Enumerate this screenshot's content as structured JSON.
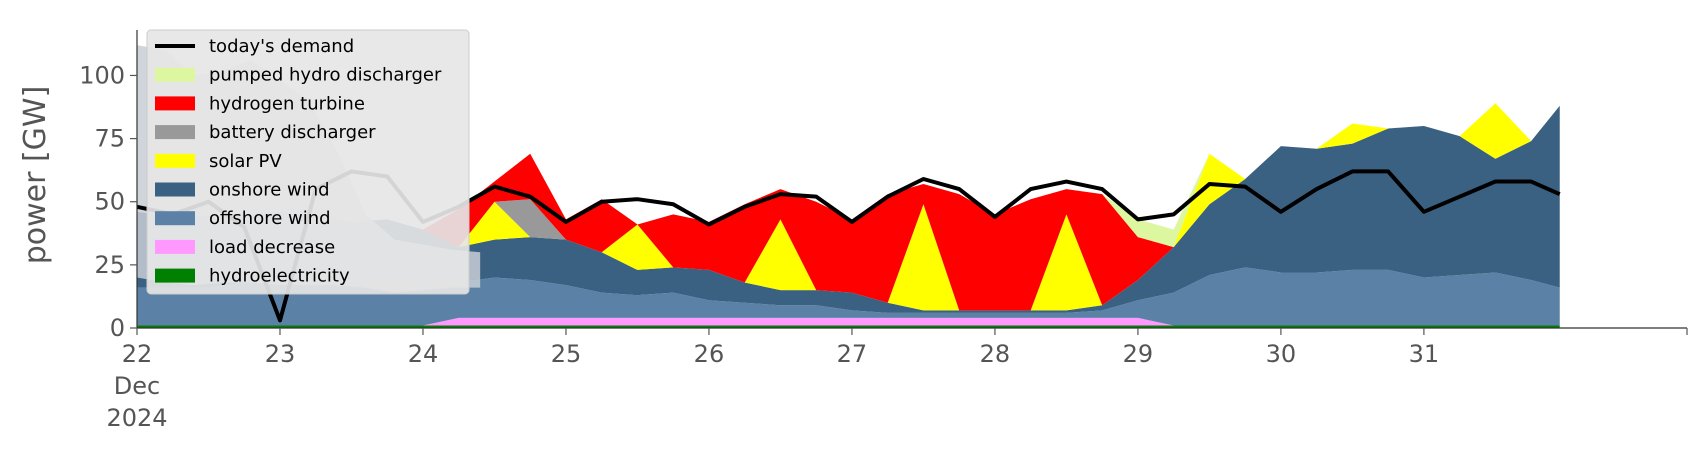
{
  "chart_data": {
    "type": "area",
    "stacked": true,
    "ylabel": "power [GW]",
    "ylim": [
      0,
      118
    ],
    "yticks": [
      0,
      25,
      50,
      75,
      100
    ],
    "x_start_day": "2024-12-22",
    "x_end_day": "2025-01-01",
    "xticks": [
      {
        "day": 0,
        "label": "22",
        "sub1": "Dec",
        "sub2": "2024"
      },
      {
        "day": 1,
        "label": "23"
      },
      {
        "day": 2,
        "label": "24"
      },
      {
        "day": 3,
        "label": "25"
      },
      {
        "day": 4,
        "label": "26"
      },
      {
        "day": 5,
        "label": "27"
      },
      {
        "day": 6,
        "label": "28"
      },
      {
        "day": 7,
        "label": "29"
      },
      {
        "day": 8,
        "label": "30"
      },
      {
        "day": 9,
        "label": "31"
      }
    ],
    "legend_position": "top-left",
    "grid": false,
    "x_days": [
      0,
      0.25,
      0.5,
      0.75,
      1,
      1.25,
      1.5,
      1.75,
      2,
      2.25,
      2.5,
      2.75,
      3,
      3.25,
      3.5,
      3.75,
      4,
      4.25,
      4.5,
      4.75,
      5,
      5.25,
      5.5,
      5.75,
      6,
      6.25,
      6.5,
      6.75,
      7,
      7.25,
      7.5,
      7.75,
      8,
      8.25,
      8.5,
      8.75,
      9,
      9.25,
      9.5,
      9.75,
      9.95
    ],
    "demand": {
      "name": "today's demand",
      "color": "#000000",
      "values": [
        48,
        45,
        50,
        40,
        3,
        55,
        62,
        60,
        42,
        48,
        56,
        52,
        42,
        50,
        51,
        49,
        41,
        48,
        53,
        52,
        42,
        52,
        59,
        55,
        44,
        55,
        58,
        55,
        43,
        45,
        57,
        56,
        46,
        55,
        62,
        62,
        46,
        52,
        58,
        58,
        53
      ]
    },
    "series": [
      {
        "name": "hydroelectricity",
        "color": "#008000",
        "values": [
          1,
          1,
          1,
          1,
          1,
          1,
          1,
          1,
          1,
          1,
          1,
          1,
          1,
          1,
          1,
          1,
          1,
          1,
          1,
          1,
          1,
          1,
          1,
          1,
          1,
          1,
          1,
          1,
          1,
          1,
          1,
          1,
          1,
          1,
          1,
          1,
          1,
          1,
          1,
          1,
          1
        ]
      },
      {
        "name": "load decrease",
        "color": "#ff99ff",
        "values": [
          0,
          0,
          0,
          0,
          0,
          0,
          0,
          0,
          0,
          3,
          3,
          3,
          3,
          3,
          3,
          3,
          3,
          3,
          3,
          3,
          3,
          3,
          3,
          3,
          3,
          3,
          3,
          3,
          3,
          0,
          0,
          0,
          0,
          0,
          0,
          0,
          0,
          0,
          0,
          0,
          0
        ]
      },
      {
        "name": "offshore wind",
        "color": "#5b82a6",
        "values": [
          15,
          15,
          15,
          17,
          18,
          17,
          16,
          17,
          16,
          14,
          16,
          15,
          13,
          10,
          9,
          10,
          7,
          6,
          5,
          5,
          3,
          2,
          2,
          2,
          2,
          2,
          2,
          3,
          7,
          13,
          20,
          23,
          21,
          21,
          22,
          22,
          19,
          20,
          21,
          18,
          15
        ]
      },
      {
        "name": "onshore wind",
        "color": "#3b6182",
        "values": [
          30,
          28,
          28,
          27,
          27,
          26,
          25,
          25,
          22,
          14,
          15,
          17,
          18,
          16,
          10,
          10,
          12,
          8,
          6,
          6,
          7,
          4,
          1,
          1,
          1,
          1,
          1,
          2,
          8,
          18,
          28,
          35,
          50,
          49,
          50,
          56,
          60,
          55,
          45,
          55,
          72
        ]
      },
      {
        "name": "solar PV",
        "color": "#ffff00",
        "values": [
          0,
          0,
          0,
          0,
          0,
          0,
          0,
          0,
          0,
          0,
          15,
          0,
          0,
          0,
          18,
          0,
          0,
          0,
          28,
          0,
          0,
          0,
          42,
          0,
          0,
          0,
          38,
          0,
          0,
          0,
          20,
          0,
          0,
          0,
          8,
          0,
          0,
          0,
          22,
          0,
          0
        ]
      },
      {
        "name": "battery discharger",
        "color": "#999999",
        "values": [
          0,
          0,
          0,
          0,
          0,
          0,
          0,
          0,
          0,
          0,
          0,
          15,
          0,
          0,
          0,
          0,
          0,
          0,
          0,
          0,
          0,
          0,
          0,
          0,
          0,
          0,
          0,
          0,
          0,
          0,
          0,
          0,
          0,
          0,
          0,
          0,
          0,
          0,
          0,
          0,
          0
        ]
      },
      {
        "name": "hydrogen turbine",
        "color": "#ff0000",
        "values": [
          0,
          0,
          0,
          0,
          0,
          0,
          0,
          0,
          0,
          15,
          8,
          18,
          8,
          21,
          0,
          21,
          19,
          31,
          12,
          35,
          29,
          43,
          8,
          46,
          38,
          44,
          10,
          44,
          17,
          0,
          0,
          0,
          0,
          0,
          0,
          0,
          0,
          0,
          0,
          0,
          0
        ]
      },
      {
        "name": "pumped hydro discharger",
        "color": "#ddf7a0",
        "values": [
          0,
          0,
          0,
          0,
          0,
          0,
          0,
          0,
          0,
          0,
          0,
          0,
          0,
          0,
          0,
          0,
          0,
          0,
          0,
          0,
          0,
          0,
          0,
          0,
          0,
          0,
          0,
          0,
          7,
          7,
          0,
          0,
          0,
          0,
          0,
          0,
          0,
          0,
          0,
          0,
          0
        ]
      }
    ],
    "ghost_overlay": {
      "color": "#c8ced6",
      "opacity": 0.85,
      "upper": [
        112,
        110,
        100,
        102,
        106,
        98,
        90,
        70,
        45,
        35,
        33,
        31,
        30
      ],
      "lower": [
        20,
        18,
        17,
        18,
        18,
        17,
        17,
        17,
        16,
        14,
        15,
        16,
        16
      ]
    },
    "legend": [
      {
        "name": "today's demand",
        "color": "#000000",
        "kind": "line"
      },
      {
        "name": "pumped hydro discharger",
        "color": "#ddf7a0",
        "kind": "patch"
      },
      {
        "name": "hydrogen turbine",
        "color": "#ff0000",
        "kind": "patch"
      },
      {
        "name": "battery discharger",
        "color": "#999999",
        "kind": "patch"
      },
      {
        "name": "solar PV",
        "color": "#ffff00",
        "kind": "patch"
      },
      {
        "name": "onshore wind",
        "color": "#3b6182",
        "kind": "patch"
      },
      {
        "name": "offshore wind",
        "color": "#5b82a6",
        "kind": "patch"
      },
      {
        "name": "load decrease",
        "color": "#ff99ff",
        "kind": "patch"
      },
      {
        "name": "hydroelectricity",
        "color": "#008000",
        "kind": "patch"
      }
    ]
  }
}
